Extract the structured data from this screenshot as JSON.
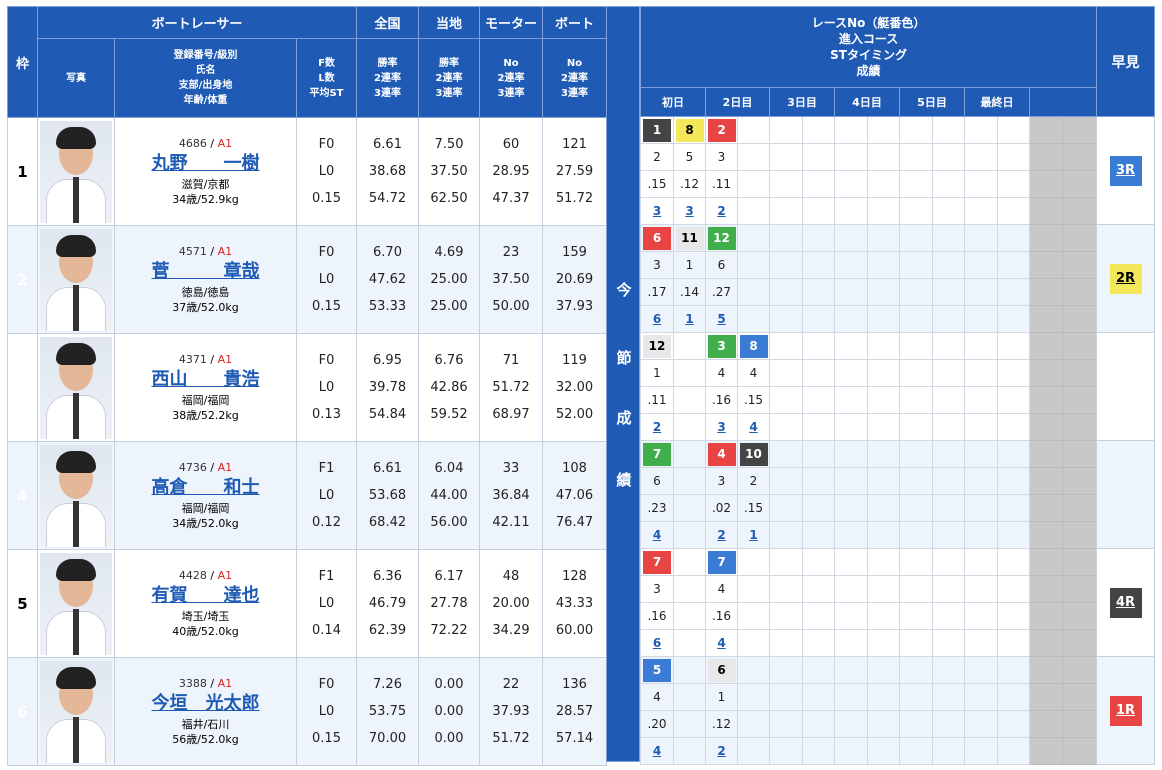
{
  "headers": {
    "waku": "枠",
    "boatracer": "ボートレーサー",
    "zenkoku": "全国",
    "touchi": "当地",
    "motor": "モーター",
    "boat": "ボート",
    "photo": "写真",
    "profile": [
      "登録番号/級別",
      "氏名",
      "支部/出身地",
      "年齢/体重"
    ],
    "fstats": [
      "F数",
      "L数",
      "平均ST"
    ],
    "rates": [
      "勝率",
      "2連率",
      "3連率"
    ],
    "motor_sub": [
      "No",
      "2連率",
      "3連率"
    ],
    "boat_sub": [
      "No",
      "2連率",
      "3連率"
    ],
    "race_title": "レースNo（艇番色）\n進入コース\nSTタイミング\n成績",
    "days": [
      "初日",
      "2日目",
      "3日目",
      "4日目",
      "5日目",
      "最終日"
    ],
    "konsetsu": [
      "今",
      "節",
      "成",
      "績"
    ],
    "hayami": "早見"
  },
  "racers": [
    {
      "waku": "1",
      "reg": "4686",
      "cls": "A1",
      "name": "丸野　　一樹",
      "branch": "滋賀/京都",
      "age": "34歳/52.9kg",
      "f": "F0",
      "l": "L0",
      "st": "0.15",
      "zen": [
        "6.61",
        "38.68",
        "54.72"
      ],
      "tou": [
        "7.50",
        "37.50",
        "62.50"
      ],
      "motor": [
        "60",
        "28.95",
        "47.37"
      ],
      "boat": [
        "121",
        "27.59",
        "51.72"
      ],
      "hayami": "3R",
      "hcolor": "#3a7bd5",
      "htext": "#fff",
      "races": [
        {
          "no": [
            "1",
            "8",
            "2"
          ],
          "nc": [
            "#444",
            "#f2e85a",
            "#e84444"
          ],
          "tc": [
            "#fff",
            "#000",
            "#fff"
          ],
          "course": [
            "2",
            "5",
            "3"
          ],
          "st": [
            ".15",
            ".12",
            ".11"
          ],
          "res": [
            "3",
            "3",
            "2"
          ]
        }
      ]
    },
    {
      "waku": "2",
      "reg": "4571",
      "cls": "A1",
      "name": "菅　　　章哉",
      "branch": "徳島/徳島",
      "age": "37歳/52.0kg",
      "f": "F0",
      "l": "L0",
      "st": "0.15",
      "zen": [
        "6.70",
        "47.62",
        "53.33"
      ],
      "tou": [
        "4.69",
        "25.00",
        "25.00"
      ],
      "motor": [
        "23",
        "37.50",
        "50.00"
      ],
      "boat": [
        "159",
        "20.69",
        "37.93"
      ],
      "hayami": "2R",
      "hcolor": "#f2e85a",
      "htext": "#000",
      "races": [
        {
          "no": [
            "6",
            "11",
            "12"
          ],
          "nc": [
            "#e84444",
            "#e8e8e8",
            "#3fae4b"
          ],
          "tc": [
            "#fff",
            "#000",
            "#fff"
          ],
          "course": [
            "3",
            "1",
            "6"
          ],
          "st": [
            ".17",
            ".14",
            ".27"
          ],
          "res": [
            "6",
            "1",
            "5"
          ]
        }
      ]
    },
    {
      "waku": "3",
      "reg": "4371",
      "cls": "A1",
      "name": "西山　　貴浩",
      "branch": "福岡/福岡",
      "age": "38歳/52.2kg",
      "f": "F0",
      "l": "L0",
      "st": "0.13",
      "zen": [
        "6.95",
        "39.78",
        "54.84"
      ],
      "tou": [
        "6.76",
        "42.86",
        "59.52"
      ],
      "motor": [
        "71",
        "51.72",
        "68.97"
      ],
      "boat": [
        "119",
        "32.00",
        "52.00"
      ],
      "hayami": "",
      "hcolor": "",
      "htext": "",
      "races": [
        {
          "no": [
            "12",
            "",
            "3",
            "8"
          ],
          "nc": [
            "#e8e8e8",
            "",
            "#3fae4b",
            "#3a7bd5"
          ],
          "tc": [
            "#000",
            "",
            "#fff",
            "#fff"
          ],
          "course": [
            "1",
            "",
            "4",
            "4"
          ],
          "st": [
            ".11",
            "",
            ".16",
            ".15"
          ],
          "res": [
            "2",
            "",
            "3",
            "4"
          ]
        }
      ]
    },
    {
      "waku": "4",
      "reg": "4736",
      "cls": "A1",
      "name": "高倉　　和士",
      "branch": "福岡/福岡",
      "age": "34歳/52.0kg",
      "f": "F1",
      "l": "L0",
      "st": "0.12",
      "zen": [
        "6.61",
        "53.68",
        "68.42"
      ],
      "tou": [
        "6.04",
        "44.00",
        "56.00"
      ],
      "motor": [
        "33",
        "36.84",
        "42.11"
      ],
      "boat": [
        "108",
        "47.06",
        "76.47"
      ],
      "hayami": "",
      "hcolor": "",
      "htext": "",
      "races": [
        {
          "no": [
            "7",
            "",
            "4",
            "10"
          ],
          "nc": [
            "#3fae4b",
            "",
            "#e84444",
            "#444"
          ],
          "tc": [
            "#fff",
            "",
            "#fff",
            "#fff"
          ],
          "course": [
            "6",
            "",
            "3",
            "2"
          ],
          "st": [
            ".23",
            "",
            ".02",
            ".15"
          ],
          "res": [
            "4",
            "",
            "2",
            "1"
          ]
        }
      ]
    },
    {
      "waku": "5",
      "reg": "4428",
      "cls": "A1",
      "name": "有賀　　達也",
      "branch": "埼玉/埼玉",
      "age": "40歳/52.0kg",
      "f": "F1",
      "l": "L0",
      "st": "0.14",
      "zen": [
        "6.36",
        "46.79",
        "62.39"
      ],
      "tou": [
        "6.17",
        "27.78",
        "72.22"
      ],
      "motor": [
        "48",
        "20.00",
        "34.29"
      ],
      "boat": [
        "128",
        "43.33",
        "60.00"
      ],
      "hayami": "4R",
      "hcolor": "#444",
      "htext": "#fff",
      "races": [
        {
          "no": [
            "7",
            "",
            "7"
          ],
          "nc": [
            "#e84444",
            "",
            "#3a7bd5"
          ],
          "tc": [
            "#fff",
            "",
            "#fff"
          ],
          "course": [
            "3",
            "",
            "4"
          ],
          "st": [
            ".16",
            "",
            ".16"
          ],
          "res": [
            "6",
            "",
            "4"
          ]
        }
      ]
    },
    {
      "waku": "6",
      "reg": "3388",
      "cls": "A1",
      "name": "今垣　光太郎",
      "branch": "福井/石川",
      "age": "56歳/52.0kg",
      "f": "F0",
      "l": "L0",
      "st": "0.15",
      "zen": [
        "7.26",
        "53.75",
        "70.00"
      ],
      "tou": [
        "0.00",
        "0.00",
        "0.00"
      ],
      "motor": [
        "22",
        "37.93",
        "51.72"
      ],
      "boat": [
        "136",
        "28.57",
        "57.14"
      ],
      "hayami": "1R",
      "hcolor": "#e84444",
      "htext": "#fff",
      "races": [
        {
          "no": [
            "5",
            "",
            "6"
          ],
          "nc": [
            "#3a7bd5",
            "",
            "#e8e8e8"
          ],
          "tc": [
            "#fff",
            "",
            "#000"
          ],
          "course": [
            "4",
            "",
            "1"
          ],
          "st": [
            ".20",
            "",
            ".12"
          ],
          "res": [
            "4",
            "",
            "2"
          ]
        }
      ]
    }
  ]
}
